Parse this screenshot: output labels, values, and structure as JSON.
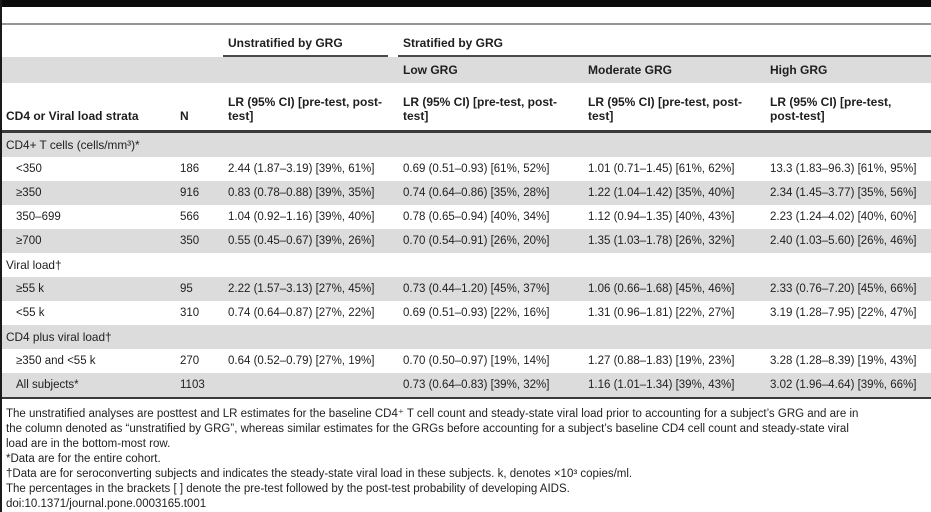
{
  "colors": {
    "row_shade": "#dcdcdc",
    "rule_dark": "#3a3a3a",
    "rule_gray": "#969696",
    "top_bar": "#0b0b0b",
    "text": "#1e1e1e"
  },
  "header": {
    "group_unstratified": "Unstratified by GRG",
    "group_stratified": "Stratified by GRG",
    "subgroups": [
      "Low GRG",
      "Moderate GRG",
      "High GRG"
    ],
    "col_strata": "CD4 or Viral load strata",
    "col_n": "N",
    "col_lr": "LR (95% CI) [pre-test, post-test]"
  },
  "table": {
    "rows": [
      {
        "kind": "section",
        "shaded": true,
        "label": "CD4+ T cells (cells/mm³)*"
      },
      {
        "kind": "data",
        "shaded": false,
        "label": "<350",
        "n": "186",
        "unstratified": "2.44 (1.87–3.19) [39%, 61%]",
        "low": "0.69 (0.51–0.93) [61%, 52%]",
        "moderate": "1.01 (0.71–1.45) [61%, 62%]",
        "high": "13.3 (1.83–96.3) [61%, 95%]"
      },
      {
        "kind": "data",
        "shaded": true,
        "label": "≥350",
        "n": "916",
        "unstratified": "0.83 (0.78–0.88) [39%, 35%]",
        "low": "0.74 (0.64–0.86) [35%, 28%]",
        "moderate": "1.22 (1.04–1.42) [35%, 40%]",
        "high": "2.34 (1.45–3.77) [35%, 56%]"
      },
      {
        "kind": "data",
        "shaded": false,
        "label": "350–699",
        "n": "566",
        "unstratified": "1.04 (0.92–1.16) [39%, 40%]",
        "low": "0.78 (0.65–0.94) [40%, 34%]",
        "moderate": "1.12 (0.94–1.35) [40%, 43%]",
        "high": "2.23 (1.24–4.02) [40%, 60%]"
      },
      {
        "kind": "data",
        "shaded": true,
        "label": "≥700",
        "n": "350",
        "unstratified": "0.55 (0.45–0.67) [39%, 26%]",
        "low": "0.70 (0.54–0.91) [26%, 20%]",
        "moderate": "1.35 (1.03–1.78) [26%, 32%]",
        "high": "2.40 (1.03–5.60) [26%, 46%]"
      },
      {
        "kind": "section",
        "shaded": false,
        "label": "Viral load†"
      },
      {
        "kind": "data",
        "shaded": true,
        "label": "≥55 k",
        "n": "95",
        "unstratified": "2.22 (1.57–3.13) [27%, 45%]",
        "low": "0.73 (0.44–1.20) [45%, 37%]",
        "moderate": "1.06 (0.66–1.68) [45%, 46%]",
        "high": "2.33 (0.76–7.20) [45%, 66%]"
      },
      {
        "kind": "data",
        "shaded": false,
        "label": "<55 k",
        "n": "310",
        "unstratified": "0.74 (0.64–0.87) [27%, 22%]",
        "low": "0.69 (0.51–0.93) [22%, 16%]",
        "moderate": "1.31 (0.96–1.81) [22%, 27%]",
        "high": "3.19 (1.28–7.95) [22%, 47%]"
      },
      {
        "kind": "section",
        "shaded": true,
        "label": "CD4 plus viral load†"
      },
      {
        "kind": "data",
        "shaded": false,
        "label": "≥350 and <55 k",
        "n": "270",
        "unstratified": "0.64 (0.52–0.79) [27%, 19%]",
        "low": "0.70 (0.50–0.97) [19%, 14%]",
        "moderate": "1.27 (0.88–1.83) [19%, 23%]",
        "high": "3.28 (1.28–8.39) [19%, 43%]"
      },
      {
        "kind": "data",
        "shaded": true,
        "label": "All subjects*",
        "n": "1103",
        "unstratified": "",
        "low": "0.73 (0.64–0.83) [39%, 32%]",
        "moderate": "1.16 (1.01–1.34) [39%, 43%]",
        "high": "3.02 (1.96–4.64) [39%, 66%]"
      }
    ]
  },
  "footnotes": {
    "para_lines": [
      "The unstratified analyses are posttest and LR estimates for the baseline CD4⁺ T cell count and steady-state viral load prior to accounting for a subject’s GRG and are in",
      "the column denoted as “unstratified by GRG”, whereas similar estimates for the GRGs before accounting for a subject’s baseline CD4 cell count and steady-state viral",
      "load are in the bottom-most row."
    ],
    "star": "*Data are for the entire cohort.",
    "dagger": "†Data are for seroconverting subjects and indicates the steady-state viral load in these subjects. k, denotes ×10³ copies/ml.",
    "brackets": "The percentages in the brackets [ ] denote the pre-test followed by the post-test probability of developing AIDS.",
    "doi": "doi:10.1371/journal.pone.0003165.t001"
  }
}
